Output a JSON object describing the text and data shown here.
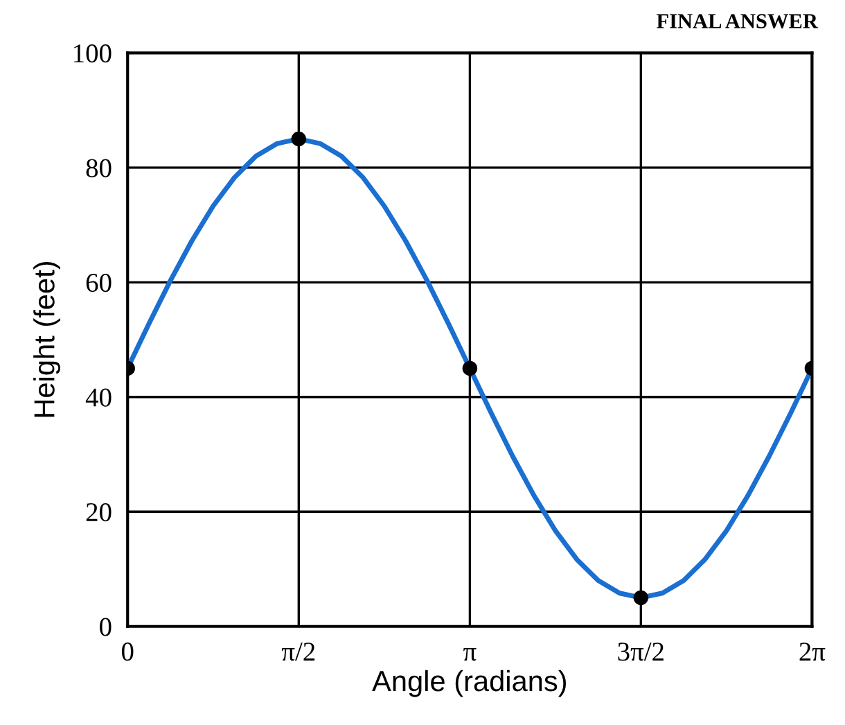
{
  "chart_data": {
    "type": "line",
    "xlabel": "Angle (radians)",
    "ylabel": "Height (feet)",
    "annotations": [
      "FINAL ANSWER"
    ],
    "xlim": [
      0,
      6.283
    ],
    "ylim": [
      0,
      100
    ],
    "xticks": [
      {
        "value": 0,
        "label": "0"
      },
      {
        "value": 1.571,
        "label": "π/2"
      },
      {
        "value": 3.142,
        "label": "π"
      },
      {
        "value": 4.712,
        "label": "3π/2"
      },
      {
        "value": 6.283,
        "label": "2π"
      }
    ],
    "yticks": [
      0,
      20,
      40,
      60,
      80,
      100
    ],
    "grid": true,
    "legend": false,
    "series": [
      {
        "color": "#1a6fd0",
        "marker": "none",
        "line_style": "solid",
        "x": [
          0,
          0.196,
          0.393,
          0.589,
          0.785,
          0.982,
          1.178,
          1.374,
          1.571,
          1.767,
          1.963,
          2.16,
          2.356,
          2.553,
          2.749,
          2.945,
          3.142,
          3.338,
          3.534,
          3.731,
          3.927,
          4.123,
          4.32,
          4.516,
          4.712,
          4.909,
          5.105,
          5.301,
          5.498,
          5.694,
          5.89,
          6.087,
          6.283
        ],
        "values": [
          45,
          52.8,
          60.3,
          67.2,
          73.3,
          78.3,
          82,
          84.2,
          85,
          84.2,
          82,
          78.3,
          73.3,
          67.2,
          60.3,
          52.8,
          45,
          37.2,
          29.7,
          22.8,
          16.7,
          11.7,
          8,
          5.8,
          5,
          5.8,
          8,
          11.7,
          16.7,
          22.8,
          29.7,
          37.2,
          45
        ]
      },
      {
        "type": "scatter",
        "color": "#000000",
        "marker": "circle",
        "x": [
          0,
          1.571,
          3.142,
          4.712,
          6.283
        ],
        "values": [
          45,
          85,
          45,
          5,
          45
        ]
      }
    ]
  }
}
